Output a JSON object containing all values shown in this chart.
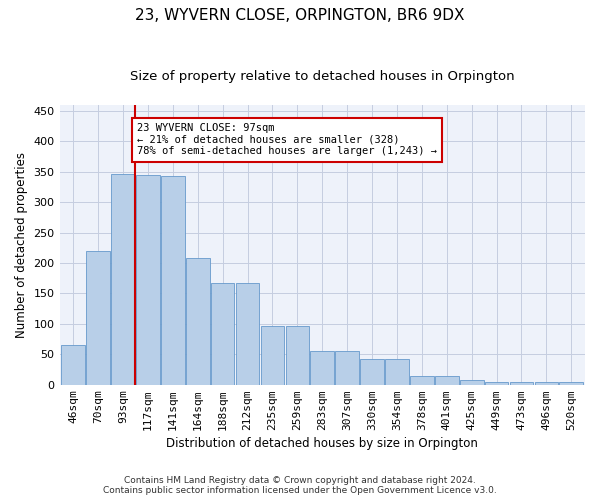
{
  "title": "23, WYVERN CLOSE, ORPINGTON, BR6 9DX",
  "subtitle": "Size of property relative to detached houses in Orpington",
  "xlabel": "Distribution of detached houses by size in Orpington",
  "ylabel": "Number of detached properties",
  "bar_heights": [
    65,
    220,
    347,
    345,
    343,
    208,
    167,
    167,
    97,
    97,
    56,
    56,
    42,
    42,
    14,
    14,
    7,
    5,
    5,
    4,
    4
  ],
  "bar_labels": [
    "46sqm",
    "70sqm",
    "93sqm",
    "117sqm",
    "141sqm",
    "164sqm",
    "188sqm",
    "212sqm",
    "235sqm",
    "259sqm",
    "283sqm",
    "307sqm",
    "330sqm",
    "354sqm",
    "378sqm",
    "401sqm",
    "425sqm",
    "449sqm",
    "473sqm",
    "496sqm",
    "520sqm"
  ],
  "bar_color": "#b8cfe8",
  "bar_edge_color": "#6699cc",
  "background_color": "#eef2fa",
  "grid_color": "#c5cde0",
  "annotation_text": "23 WYVERN CLOSE: 97sqm\n← 21% of detached houses are smaller (328)\n78% of semi-detached houses are larger (1,243) →",
  "vline_x": 2.5,
  "vline_color": "#cc0000",
  "box_color": "#cc0000",
  "ylim": [
    0,
    460
  ],
  "yticks": [
    0,
    50,
    100,
    150,
    200,
    250,
    300,
    350,
    400,
    450
  ],
  "title_fontsize": 11,
  "subtitle_fontsize": 9.5,
  "xlabel_fontsize": 8.5,
  "ylabel_fontsize": 8.5,
  "tick_fontsize": 8,
  "annot_fontsize": 7.5,
  "footer_text": "Contains HM Land Registry data © Crown copyright and database right 2024.\nContains public sector information licensed under the Open Government Licence v3.0.",
  "footer_fontsize": 6.5
}
